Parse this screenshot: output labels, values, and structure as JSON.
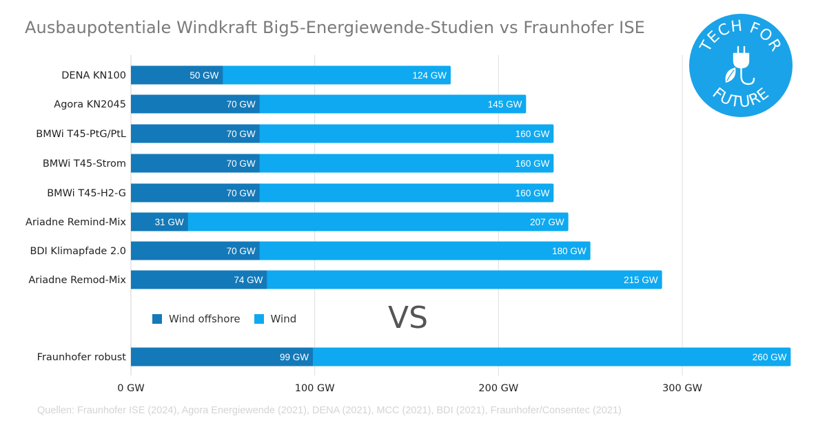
{
  "chart_data": {
    "type": "bar",
    "orientation": "horizontal",
    "stacked": false,
    "title": "Ausbaupotentiale Windkraft Big5-Energiewende-Studien vs Fraunhofer ISE",
    "categories": [
      "DENA KN100",
      "Agora KN2045",
      "BMWi T45-PtG/PtL",
      "BMWi T45-Strom",
      "BMWi T45-H2-G",
      "Ariadne Remind-Mix",
      "BDI Klimapfade 2.0",
      "Ariadne Remod-Mix",
      "Fraunhofer robust"
    ],
    "series": [
      {
        "name": "Wind offshore",
        "color": "#1479b8",
        "values": [
          50,
          70,
          70,
          70,
          70,
          31,
          70,
          74,
          99
        ],
        "labels": [
          "50 GW",
          "70 GW",
          "70 GW",
          "70 GW",
          "70 GW",
          "31 GW",
          "70 GW",
          "74 GW",
          "99 GW"
        ]
      },
      {
        "name": "Wind",
        "color": "#0ea9f0",
        "values": [
          124,
          145,
          160,
          160,
          160,
          207,
          180,
          215,
          260
        ],
        "labels": [
          "124 GW",
          "145 GW",
          "160 GW",
          "160 GW",
          "160 GW",
          "207 GW",
          "180 GW",
          "215 GW",
          "260 GW"
        ]
      }
    ],
    "xlim": [
      0,
      360
    ],
    "x_ticks": [
      {
        "value": 0,
        "label": "0 GW"
      },
      {
        "value": 100,
        "label": "100 GW"
      },
      {
        "value": 200,
        "label": "200 GW"
      },
      {
        "value": 300,
        "label": "300 GW"
      }
    ],
    "grid": true,
    "legend": "bottom-left"
  },
  "comparison_label": "VS",
  "source": "Quellen: Fraunhofer ISE (2024), Agora Energiewende (2021), DENA (2021), MCC (2021), BDI (2021), Fraunhofer/Consentec (2021)",
  "logo": {
    "color": "#1aa3e8",
    "text_top": "TECH FOR",
    "text_bottom": "FUTURE",
    "icon": "plug-leaf-icon"
  }
}
